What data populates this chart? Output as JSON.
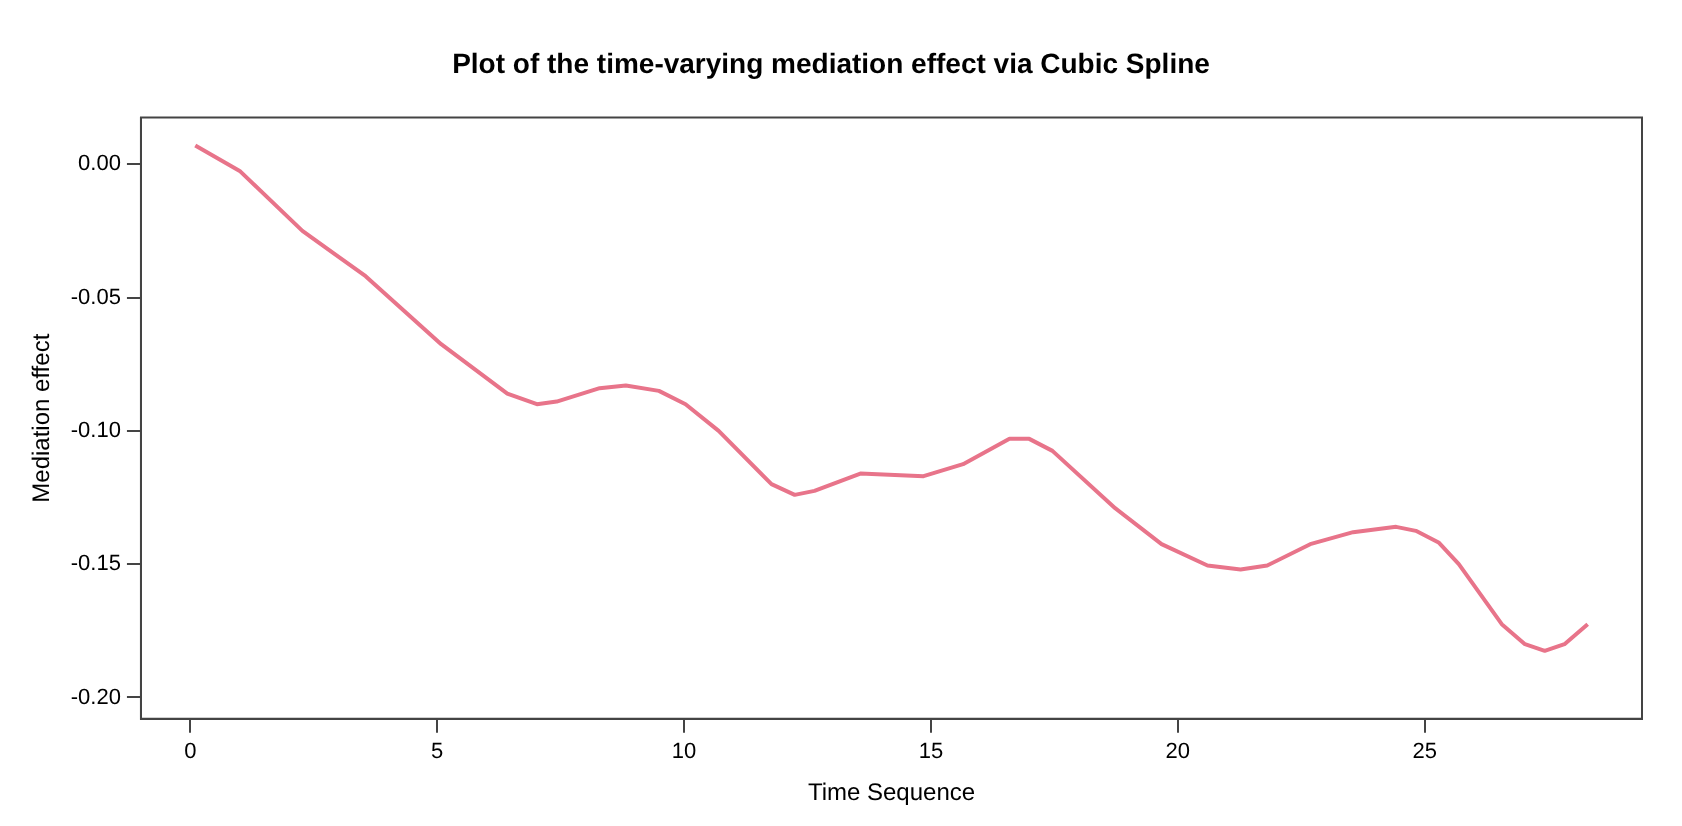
{
  "chart_data": {
    "type": "line",
    "title": "Plot of the time-varying mediation effect via Cubic Spline",
    "xlabel": "Time Sequence",
    "ylabel": "Mediation effect",
    "x": [
      0.1,
      1.0,
      2.27,
      3.55,
      5.08,
      6.42,
      7.02,
      7.42,
      8.29,
      8.82,
      9.49,
      10.03,
      10.7,
      11.77,
      12.24,
      12.64,
      13.57,
      14.85,
      15.65,
      16.59,
      16.99,
      17.46,
      18.73,
      19.67,
      20.6,
      21.27,
      21.81,
      22.68,
      23.55,
      24.42,
      24.82,
      25.29,
      25.69,
      26.56,
      27.03,
      27.43,
      27.83,
      28.3
    ],
    "series": [
      {
        "color": "#e8748a",
        "values": [
          0.007,
          -0.0025,
          -0.025,
          -0.042,
          -0.0675,
          -0.086,
          -0.09,
          -0.089,
          -0.084,
          -0.083,
          -0.085,
          -0.09,
          -0.1,
          -0.12,
          -0.124,
          -0.1225,
          -0.116,
          -0.117,
          -0.1125,
          -0.103,
          -0.103,
          -0.1075,
          -0.129,
          -0.1425,
          -0.1505,
          -0.152,
          -0.1505,
          -0.1425,
          -0.138,
          -0.136,
          -0.1375,
          -0.142,
          -0.15,
          -0.1725,
          -0.18,
          -0.1825,
          -0.18,
          -0.1725
        ]
      }
    ],
    "xlim": [
      -1.0,
      29.4
    ],
    "ylim": [
      -0.208,
      0.0175
    ],
    "xticks": [
      0,
      5,
      10,
      15,
      20,
      25
    ],
    "yticks": [
      {
        "value": 0,
        "label": "0.00"
      },
      {
        "value": -0.05,
        "label": "-0.05"
      },
      {
        "value": -0.1,
        "label": "-0.10"
      },
      {
        "value": -0.15,
        "label": "-0.15"
      },
      {
        "value": -0.2,
        "label": "-0.20"
      }
    ],
    "grid": false,
    "legend": false,
    "marker": "none",
    "line_style": "solid"
  }
}
